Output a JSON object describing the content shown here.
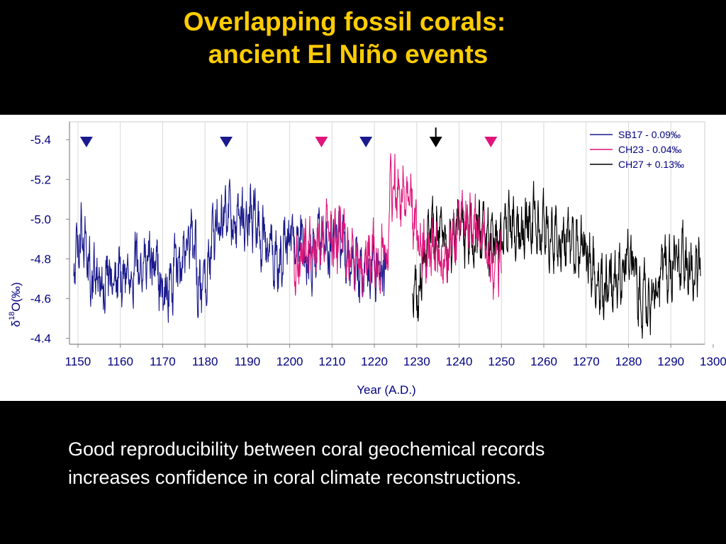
{
  "slide": {
    "title_line1": "Overlapping fossil corals:",
    "title_line2": "ancient El Niño events",
    "caption_line1": "Good reproducibility between coral geochemical records",
    "caption_line2": "increases confidence in coral climate reconstructions."
  },
  "colors": {
    "background": "#000000",
    "title": "#FFCC00",
    "caption": "#FFFFFF",
    "axis_text": "#000080"
  },
  "chart_data": {
    "type": "line",
    "xlabel": "Year (A.D.)",
    "ylabel_delta": "δ",
    "ylabel_sup": "18",
    "ylabel_rest": "O(‰)",
    "xlim": [
      1148,
      1298
    ],
    "ylim": [
      -4.37,
      -5.49
    ],
    "y_inverted": true,
    "x_ticks": [
      1150,
      1160,
      1170,
      1180,
      1190,
      1200,
      1210,
      1220,
      1230,
      1240,
      1250,
      1260,
      1270,
      1280,
      1290,
      1300
    ],
    "y_ticks": [
      -5.4,
      -5.2,
      -5.0,
      -4.8,
      -4.6,
      -4.4
    ],
    "grid": "vertical",
    "legend_position": "top-right",
    "legend": [
      {
        "label": "SB17 - 0.09‰",
        "color": "#1A1A8C"
      },
      {
        "label": "CH23 - 0.04‰",
        "color": "#E0157A"
      },
      {
        "label": "CH27 + 0.13‰",
        "color": "#000000"
      }
    ],
    "series": [
      {
        "name": "SB17 - 0.09‰",
        "color": "#1A1A8C",
        "x_range": [
          1149,
          1223
        ],
        "anchors": [
          [
            1149,
            -4.76
          ],
          [
            1151,
            -4.95
          ],
          [
            1153,
            -4.7
          ],
          [
            1155,
            -4.67
          ],
          [
            1157,
            -4.68
          ],
          [
            1159,
            -4.72
          ],
          [
            1161,
            -4.73
          ],
          [
            1163,
            -4.76
          ],
          [
            1165,
            -4.8
          ],
          [
            1167,
            -4.8
          ],
          [
            1169,
            -4.7
          ],
          [
            1171,
            -4.62
          ],
          [
            1173,
            -4.74
          ],
          [
            1175,
            -4.82
          ],
          [
            1177,
            -4.88
          ],
          [
            1179,
            -4.62
          ],
          [
            1181,
            -4.82
          ],
          [
            1183,
            -5.02
          ],
          [
            1185,
            -5.04
          ],
          [
            1187,
            -4.94
          ],
          [
            1189,
            -4.99
          ],
          [
            1191,
            -5.06
          ],
          [
            1193,
            -4.93
          ],
          [
            1195,
            -4.88
          ],
          [
            1197,
            -4.78
          ],
          [
            1199,
            -4.85
          ],
          [
            1201,
            -4.92
          ],
          [
            1203,
            -4.85
          ],
          [
            1205,
            -4.83
          ],
          [
            1207,
            -4.89
          ],
          [
            1209,
            -4.84
          ],
          [
            1211,
            -4.93
          ],
          [
            1213,
            -4.84
          ],
          [
            1215,
            -4.78
          ],
          [
            1217,
            -4.69
          ],
          [
            1219,
            -4.76
          ],
          [
            1221,
            -4.74
          ],
          [
            1223,
            -4.75
          ]
        ]
      },
      {
        "name": "CH23 - 0.04‰",
        "color": "#E0157A",
        "x_range": [
          1201,
          1250
        ],
        "anchors": [
          [
            1201,
            -4.78
          ],
          [
            1203,
            -4.82
          ],
          [
            1205,
            -4.87
          ],
          [
            1207,
            -4.85
          ],
          [
            1209,
            -4.92
          ],
          [
            1211,
            -4.9
          ],
          [
            1213,
            -4.88
          ],
          [
            1215,
            -4.83
          ],
          [
            1217,
            -4.76
          ],
          [
            1219,
            -4.81
          ],
          [
            1221,
            -4.78
          ],
          [
            1223,
            -4.85
          ],
          [
            1224,
            -5.18
          ],
          [
            1226,
            -5.16
          ],
          [
            1228,
            -5.08
          ],
          [
            1230,
            -4.95
          ],
          [
            1232,
            -4.86
          ],
          [
            1234,
            -4.84
          ],
          [
            1236,
            -4.78
          ],
          [
            1238,
            -4.88
          ],
          [
            1240,
            -4.95
          ],
          [
            1242,
            -5.02
          ],
          [
            1244,
            -5.0
          ],
          [
            1246,
            -4.88
          ],
          [
            1248,
            -4.75
          ],
          [
            1250,
            -4.78
          ]
        ]
      },
      {
        "name": "CH27 + 0.13‰",
        "color": "#000000",
        "x_range": [
          1229,
          1297
        ],
        "anchors": [
          [
            1229,
            -4.62
          ],
          [
            1231,
            -4.68
          ],
          [
            1233,
            -4.95
          ],
          [
            1235,
            -4.98
          ],
          [
            1237,
            -4.88
          ],
          [
            1239,
            -4.92
          ],
          [
            1241,
            -4.95
          ],
          [
            1243,
            -4.9
          ],
          [
            1245,
            -4.93
          ],
          [
            1247,
            -4.88
          ],
          [
            1249,
            -4.9
          ],
          [
            1251,
            -4.97
          ],
          [
            1253,
            -4.99
          ],
          [
            1255,
            -4.95
          ],
          [
            1257,
            -5.02
          ],
          [
            1259,
            -5.0
          ],
          [
            1261,
            -4.97
          ],
          [
            1263,
            -4.9
          ],
          [
            1265,
            -4.86
          ],
          [
            1267,
            -4.88
          ],
          [
            1269,
            -4.85
          ],
          [
            1271,
            -4.78
          ],
          [
            1273,
            -4.66
          ],
          [
            1275,
            -4.63
          ],
          [
            1277,
            -4.68
          ],
          [
            1279,
            -4.82
          ],
          [
            1281,
            -4.78
          ],
          [
            1283,
            -4.62
          ],
          [
            1285,
            -4.58
          ],
          [
            1287,
            -4.63
          ],
          [
            1289,
            -4.75
          ],
          [
            1291,
            -4.8
          ],
          [
            1293,
            -4.82
          ],
          [
            1295,
            -4.74
          ],
          [
            1297,
            -4.72
          ]
        ]
      }
    ],
    "markers": [
      {
        "x": 1152,
        "color": "#1A1A8C",
        "series": "SB17 - 0.09‰"
      },
      {
        "x": 1185,
        "color": "#1A1A8C",
        "series": "SB17 - 0.09‰"
      },
      {
        "x": 1207.5,
        "color": "#E0157A",
        "series": "CH23 - 0.04‰"
      },
      {
        "x": 1218,
        "color": "#1A1A8C",
        "series": "SB17 - 0.09‰"
      },
      {
        "x": 1234.5,
        "color": "#000000",
        "series": "CH27 + 0.13‰"
      },
      {
        "x": 1247.5,
        "color": "#E0157A",
        "series": "CH23 - 0.04‰"
      }
    ],
    "marker_value": -5.39
  }
}
